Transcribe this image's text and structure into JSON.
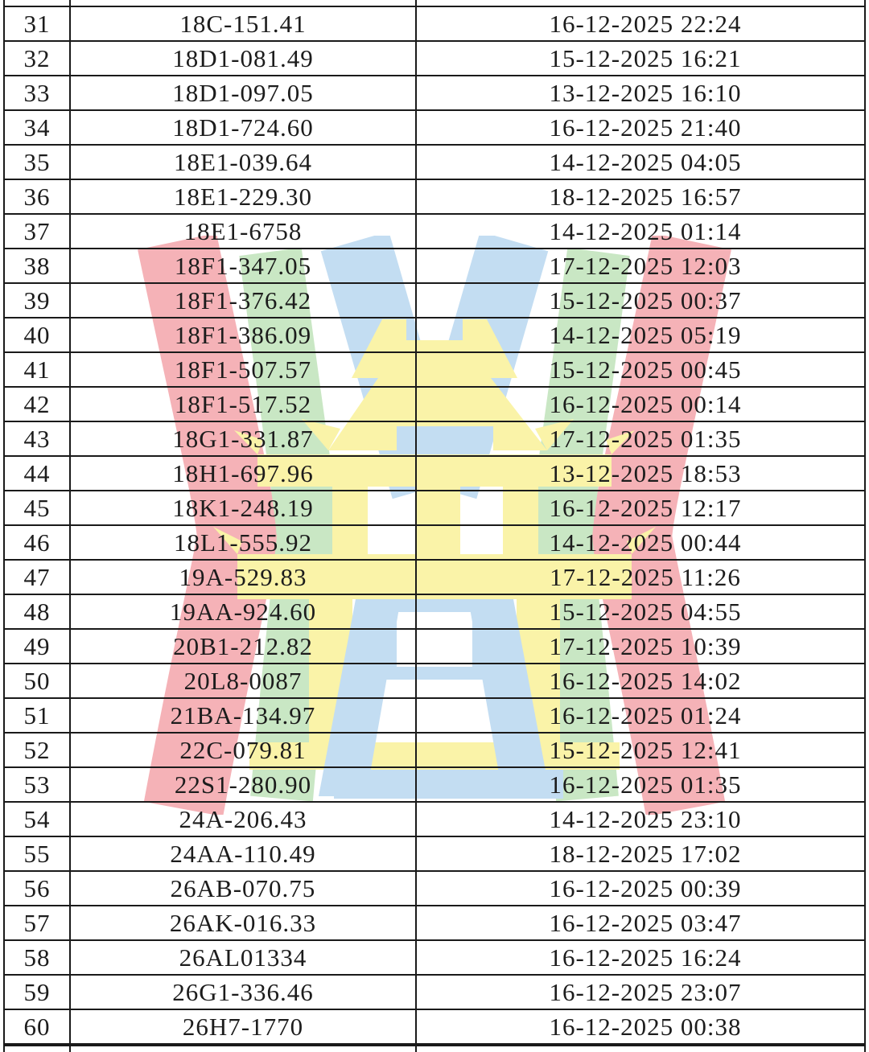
{
  "table": {
    "rows": [
      {
        "index": "31",
        "plate": "18C-151.41",
        "datetime": "16-12-2025 22:24"
      },
      {
        "index": "32",
        "plate": "18D1-081.49",
        "datetime": "15-12-2025 16:21"
      },
      {
        "index": "33",
        "plate": "18D1-097.05",
        "datetime": "13-12-2025 16:10"
      },
      {
        "index": "34",
        "plate": "18D1-724.60",
        "datetime": "16-12-2025 21:40"
      },
      {
        "index": "35",
        "plate": "18E1-039.64",
        "datetime": "14-12-2025 04:05"
      },
      {
        "index": "36",
        "plate": "18E1-229.30",
        "datetime": "18-12-2025 16:57"
      },
      {
        "index": "37",
        "plate": "18E1-6758",
        "datetime": "14-12-2025 01:14"
      },
      {
        "index": "38",
        "plate": "18F1-347.05",
        "datetime": "17-12-2025 12:03"
      },
      {
        "index": "39",
        "plate": "18F1-376.42",
        "datetime": "15-12-2025 00:37"
      },
      {
        "index": "40",
        "plate": "18F1-386.09",
        "datetime": "14-12-2025 05:19"
      },
      {
        "index": "41",
        "plate": "18F1-507.57",
        "datetime": "15-12-2025 00:45"
      },
      {
        "index": "42",
        "plate": "18F1-517.52",
        "datetime": "16-12-2025 00:14"
      },
      {
        "index": "43",
        "plate": "18G1-331.87",
        "datetime": "17-12-2025 01:35"
      },
      {
        "index": "44",
        "plate": "18H1-697.96",
        "datetime": "13-12-2025 18:53"
      },
      {
        "index": "45",
        "plate": "18K1-248.19",
        "datetime": "16-12-2025 12:17"
      },
      {
        "index": "46",
        "plate": "18L1-555.92",
        "datetime": "14-12-2025 00:44"
      },
      {
        "index": "47",
        "plate": "19A-529.83",
        "datetime": "17-12-2025 11:26"
      },
      {
        "index": "48",
        "plate": "19AA-924.60",
        "datetime": "15-12-2025 04:55"
      },
      {
        "index": "49",
        "plate": "20B1-212.82",
        "datetime": "17-12-2025 10:39"
      },
      {
        "index": "50",
        "plate": "20L8-0087",
        "datetime": "16-12-2025 14:02"
      },
      {
        "index": "51",
        "plate": "21BA-134.97",
        "datetime": "16-12-2025 01:24"
      },
      {
        "index": "52",
        "plate": "22C-079.81",
        "datetime": "15-12-2025 12:41"
      },
      {
        "index": "53",
        "plate": "22S1-280.90",
        "datetime": "16-12-2025 01:35"
      },
      {
        "index": "54",
        "plate": "24A-206.43",
        "datetime": "14-12-2025 23:10"
      },
      {
        "index": "55",
        "plate": "24AA-110.49",
        "datetime": "18-12-2025 17:02"
      },
      {
        "index": "56",
        "plate": "26AB-070.75",
        "datetime": "16-12-2025 00:39"
      },
      {
        "index": "57",
        "plate": "26AK-016.33",
        "datetime": "16-12-2025 03:47"
      },
      {
        "index": "58",
        "plate": "26AL01334",
        "datetime": "16-12-2025 16:24"
      },
      {
        "index": "59",
        "plate": "26G1-336.46",
        "datetime": "16-12-2025 23:07"
      },
      {
        "index": "60",
        "plate": "26H7-1770",
        "datetime": "16-12-2025 00:38"
      }
    ]
  },
  "watermark": {
    "name": "khue-van-cac-emblem",
    "colors": {
      "red": "#f5b2b7",
      "green": "#c9e7c4",
      "blue": "#c3ddf2",
      "yellow": "#faf3a8"
    }
  },
  "style": {
    "line_color": "#1a1a1a",
    "text_color": "#1c1c1c",
    "background": "#ffffff"
  }
}
